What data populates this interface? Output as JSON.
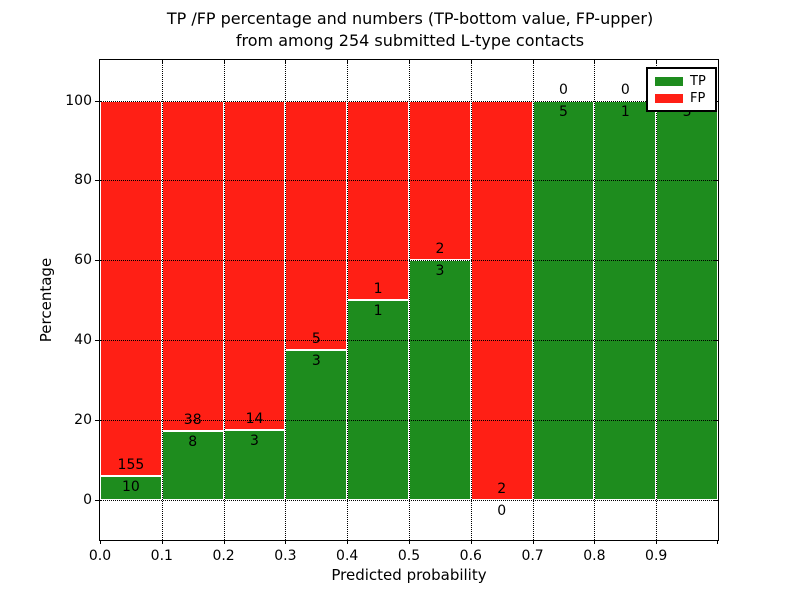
{
  "title": {
    "line1": "TP /FP percentage and numbers (TP-bottom value, FP-upper)",
    "line2": "from among 254 submitted L-type contacts"
  },
  "axes": {
    "xlabel": "Predicted probability",
    "ylabel": "Percentage"
  },
  "legend": {
    "items": [
      {
        "label": "TP",
        "color": "#1e8c1e"
      },
      {
        "label": "FP",
        "color": "#ff1f15"
      }
    ]
  },
  "chart_data": {
    "type": "bar",
    "stacked": true,
    "normalized_to_percent": true,
    "title": "TP /FP percentage and numbers (TP-bottom value, FP-upper) from among 254 submitted L-type contacts",
    "xlabel": "Predicted probability",
    "ylabel": "Percentage",
    "total_contacts": 254,
    "categories": [
      "0.0-0.1",
      "0.1-0.2",
      "0.2-0.3",
      "0.3-0.4",
      "0.4-0.5",
      "0.5-0.6",
      "0.6-0.7",
      "0.7-0.8",
      "0.8-0.9",
      "0.9-1.0"
    ],
    "series": [
      {
        "name": "TP",
        "color": "#1e8c1e",
        "counts": [
          10,
          8,
          3,
          3,
          1,
          3,
          0,
          5,
          1,
          3
        ],
        "percent": [
          6.1,
          17.4,
          17.6,
          37.5,
          50.0,
          60.0,
          0.0,
          100.0,
          100.0,
          100.0
        ]
      },
      {
        "name": "FP",
        "color": "#ff1f15",
        "counts": [
          155,
          38,
          14,
          5,
          1,
          2,
          2,
          0,
          0,
          0
        ],
        "percent": [
          93.9,
          82.6,
          82.4,
          62.5,
          50.0,
          40.0,
          100.0,
          0.0,
          0.0,
          0.0
        ]
      }
    ],
    "bar_labels_note": "TP count printed just below green top, FP count printed just above green top",
    "xticks": [
      "0.0",
      "0.1",
      "0.2",
      "0.3",
      "0.4",
      "0.5",
      "0.6",
      "0.7",
      "0.8",
      "0.9"
    ],
    "yticks": [
      0,
      20,
      40,
      60,
      80,
      100
    ],
    "xlim": [
      0.0,
      1.0
    ],
    "ylim": [
      -10,
      110
    ],
    "grid": "dotted-black-over-bars",
    "legend_position": "upper right"
  }
}
